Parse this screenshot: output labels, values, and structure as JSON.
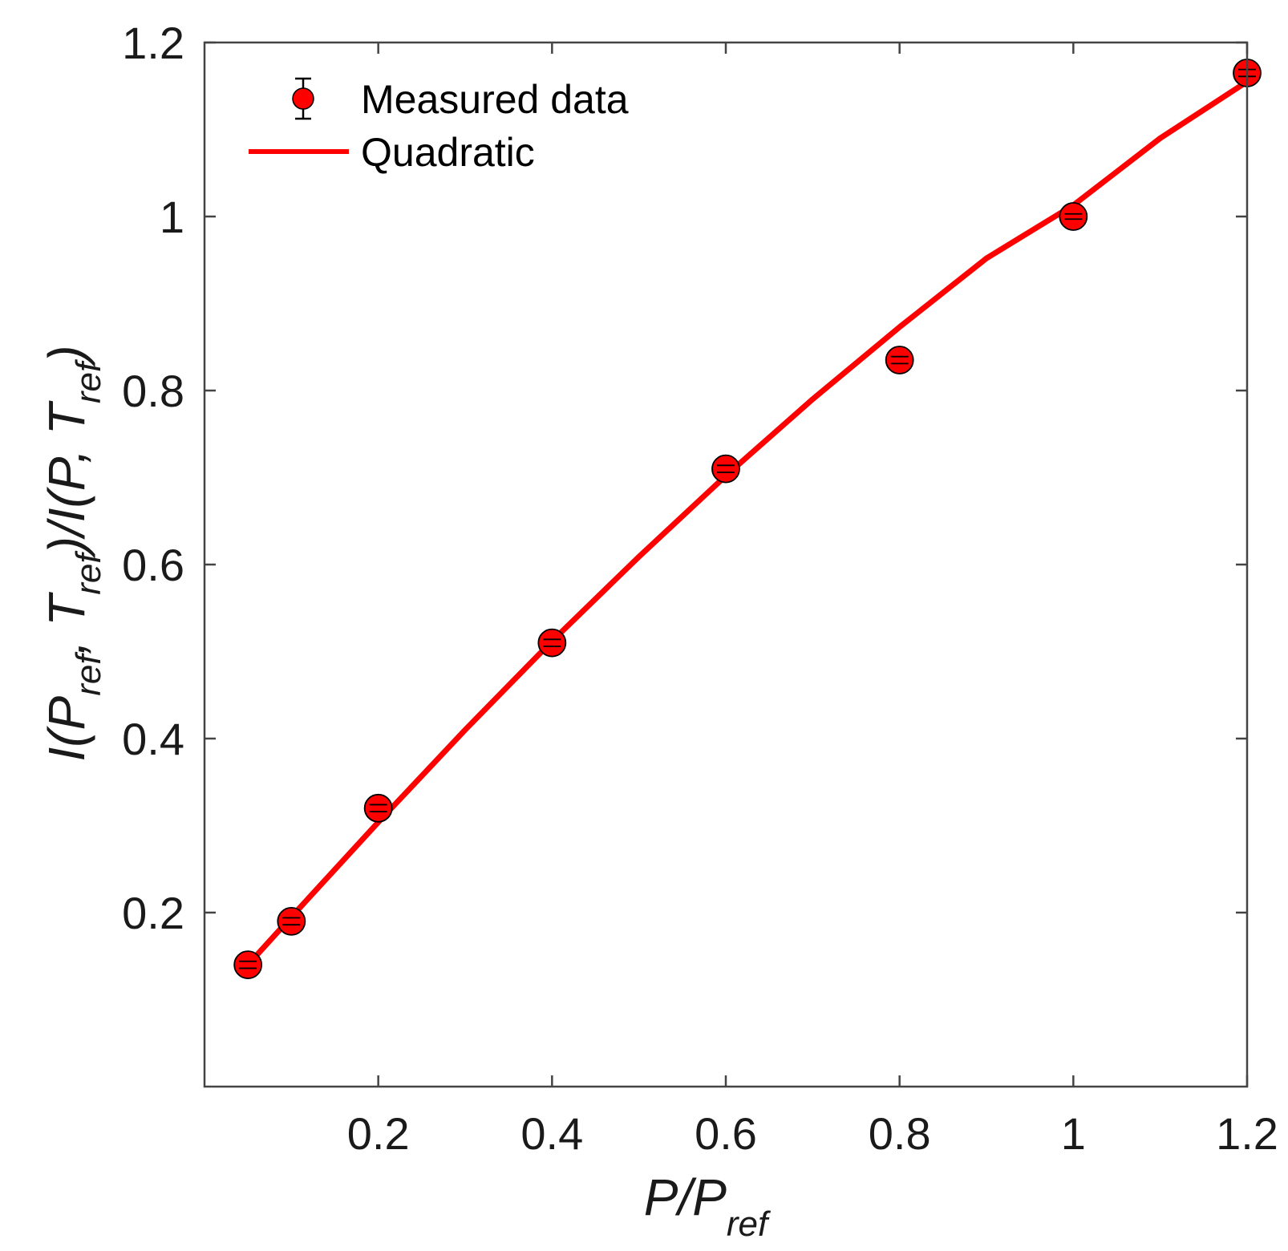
{
  "chart_data": {
    "type": "scatter",
    "title": "",
    "xlabel": "P/P_ref",
    "ylabel": "I(P_ref, T_ref)/I(P, T_ref)",
    "xlabel_parts": {
      "main": "P/P",
      "sub": "ref"
    },
    "ylabel_parts": {
      "p1": "I(P",
      "s1": "ref",
      "p2": ", T",
      "s2": "ref",
      "p3": ")/I(P, T",
      "s3": "ref",
      "p4": ")"
    },
    "xlim": [
      0.0,
      1.2
    ],
    "ylim": [
      0.0,
      1.2
    ],
    "xticks": [
      0.2,
      0.4,
      0.6,
      0.8,
      1.0,
      1.2
    ],
    "xtick_labels": [
      "0.2",
      "0.4",
      "0.6",
      "0.8",
      "1",
      "1.2"
    ],
    "yticks": [
      0.2,
      0.4,
      0.6,
      0.8,
      1.0,
      1.2
    ],
    "ytick_labels": [
      "0.2",
      "0.4",
      "0.6",
      "0.8",
      "1",
      "1.2"
    ],
    "grid": false,
    "legend_position": "top-left",
    "series": [
      {
        "name": "Measured data",
        "kind": "errorbar",
        "color": "#ff0000",
        "x": [
          0.05,
          0.1,
          0.2,
          0.4,
          0.6,
          0.8,
          1.0,
          1.2
        ],
        "y": [
          0.14,
          0.19,
          0.32,
          0.51,
          0.71,
          0.835,
          1.0,
          1.165
        ],
        "yerr": [
          0.004,
          0.004,
          0.004,
          0.004,
          0.004,
          0.004,
          0.003,
          0.004
        ]
      },
      {
        "name": "Quadratic",
        "kind": "line",
        "color": "#ff0000",
        "x": [
          0.05,
          0.1,
          0.2,
          0.3,
          0.4,
          0.5,
          0.6,
          0.7,
          0.8,
          0.9,
          1.0,
          1.1,
          1.2
        ],
        "y": [
          0.14,
          0.195,
          0.304,
          0.41,
          0.512,
          0.609,
          0.702,
          0.79,
          0.873,
          0.952,
          1.013,
          1.09,
          1.155
        ]
      }
    ]
  }
}
